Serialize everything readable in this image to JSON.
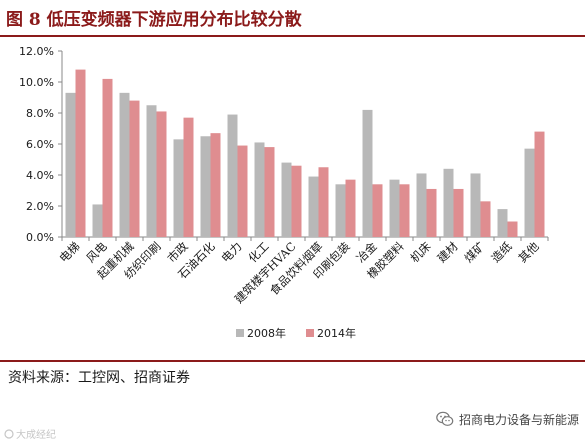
{
  "figure": {
    "title": "图 8  低压变频器下游应用分布比较分散",
    "source": "资料来源：工控网、招商证券",
    "wechat_account": "招商电力设备与新能源",
    "watermark": "大成经纪"
  },
  "colors": {
    "brand": "#8b1a1a",
    "series_2008": "#b8b8b8",
    "series_2014": "#df8d90",
    "axis": "#888888",
    "text": "#1a1a1a"
  },
  "chart_data": {
    "type": "bar",
    "title": "",
    "xlabel": "",
    "ylabel": "",
    "ylim": [
      0,
      12
    ],
    "yticks": [
      "0.0%",
      "2.0%",
      "4.0%",
      "6.0%",
      "8.0%",
      "10.0%",
      "12.0%"
    ],
    "grid": false,
    "legend_position": "bottom",
    "categories": [
      "电梯",
      "风电",
      "起重机械",
      "纺织印刷",
      "市政",
      "石油石化",
      "电力",
      "化工",
      "建筑楼宇HVAC",
      "食品饮料烟草",
      "印刷包装",
      "冶金",
      "橡胶塑料",
      "机床",
      "建材",
      "煤矿",
      "造纸",
      "其他"
    ],
    "series": [
      {
        "name": "2008年",
        "values": [
          9.3,
          2.1,
          9.3,
          8.5,
          6.3,
          6.5,
          7.9,
          6.1,
          4.8,
          3.9,
          3.4,
          8.2,
          3.7,
          4.1,
          4.4,
          4.1,
          1.8,
          5.7
        ]
      },
      {
        "name": "2014年",
        "values": [
          10.8,
          10.2,
          8.8,
          8.1,
          7.7,
          6.7,
          5.9,
          5.8,
          4.6,
          4.5,
          3.7,
          3.4,
          3.4,
          3.1,
          3.1,
          2.3,
          1.0,
          6.8
        ]
      }
    ]
  }
}
